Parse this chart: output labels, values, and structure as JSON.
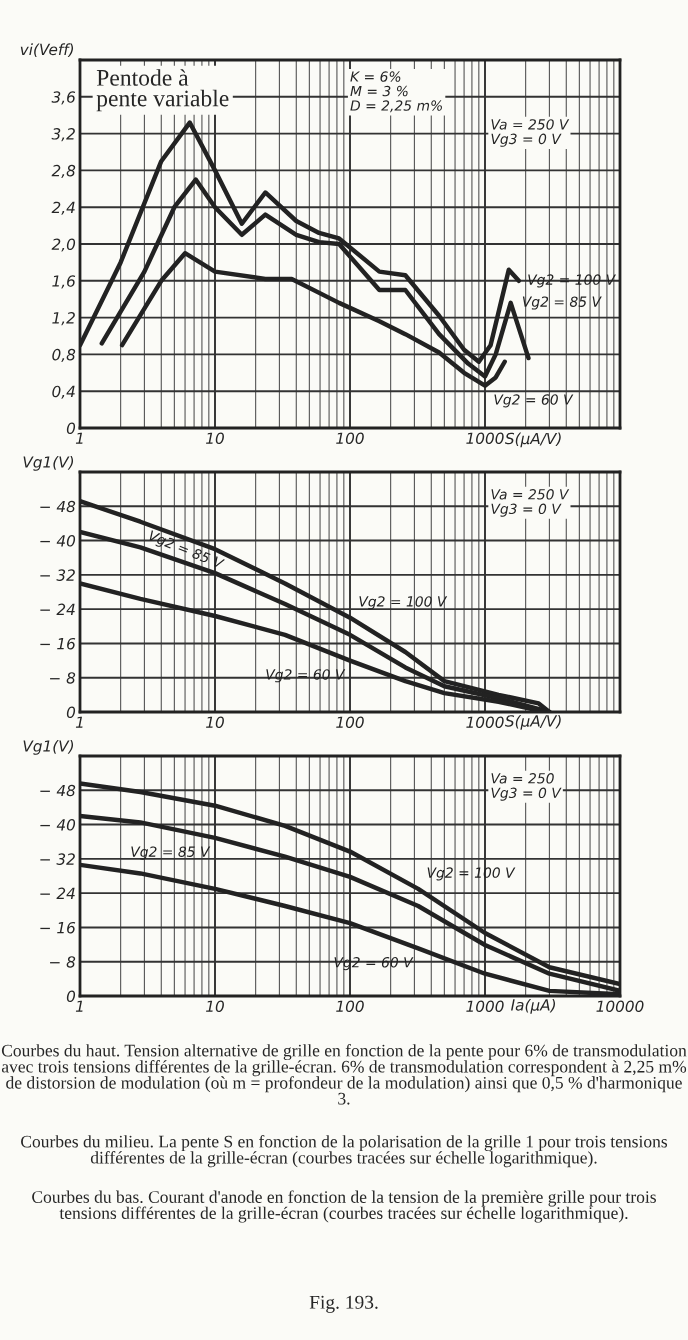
{
  "chart_data": [
    {
      "type": "line",
      "ylabel": "vi(Veff)",
      "xlabel": "S(µA/V)",
      "log": "x",
      "grid": true,
      "xlim": [
        1,
        10000
      ],
      "ylim": [
        0,
        4.0
      ],
      "xticks": [
        1,
        10,
        100,
        1000,
        {
          "value": 10000,
          "label": null
        }
      ],
      "yticks": [
        0,
        {
          "value": 0.4,
          "label": "0,4"
        },
        {
          "value": 0.8,
          "label": "0,8"
        },
        {
          "value": 1.2,
          "label": "1,2"
        },
        {
          "value": 1.6,
          "label": "1,6"
        },
        {
          "value": 2.0,
          "label": "2,0"
        },
        {
          "value": 2.4,
          "label": "2,4"
        },
        {
          "value": 2.8,
          "label": "2,8"
        },
        {
          "value": 3.2,
          "label": "3,2"
        },
        {
          "value": 3.6,
          "label": "3,6"
        }
      ],
      "annotations": [
        "Pentode à\npente variable",
        "K = 6%\nM = 3 %\nD = 2,25 m%",
        "Va = 250 V\nVg3 = 0 V"
      ],
      "series": [
        {
          "name": "Vg2 = 100 V",
          "color": "#222222",
          "x": [
            1,
            2,
            4,
            6.5,
            10,
            15.8,
            23.6,
            40,
            59,
            83,
            165,
            257,
            457,
            700,
            900,
            1100,
            1500,
            1780
          ],
          "values": [
            0.9,
            1.8,
            2.9,
            3.32,
            2.8,
            2.22,
            2.56,
            2.25,
            2.12,
            2.06,
            1.7,
            1.66,
            1.22,
            0.85,
            0.72,
            0.9,
            1.72,
            1.6
          ]
        },
        {
          "name": "Vg2 = 85 V",
          "color": "#222222",
          "x": [
            1.45,
            3,
            5,
            7.2,
            10,
            15.8,
            23.6,
            40,
            59,
            83,
            165,
            257,
            457,
            750,
            1000,
            1200,
            1550,
            2100
          ],
          "values": [
            0.92,
            1.7,
            2.4,
            2.7,
            2.4,
            2.1,
            2.32,
            2.1,
            2.02,
            2.0,
            1.5,
            1.5,
            1.02,
            0.7,
            0.56,
            0.8,
            1.36,
            0.76
          ]
        },
        {
          "name": "Vg2 = 60 V",
          "color": "#222222",
          "x": [
            2.05,
            4,
            6,
            10,
            23.6,
            37,
            83,
            165,
            257,
            457,
            700,
            1000,
            1200,
            1400
          ],
          "values": [
            0.9,
            1.6,
            1.9,
            1.7,
            1.62,
            1.62,
            1.36,
            1.16,
            1.02,
            0.82,
            0.6,
            0.46,
            0.55,
            0.72
          ]
        }
      ]
    },
    {
      "type": "line",
      "ylabel": "Vg1(V)",
      "xlabel": "S(µA/V)",
      "log": "x",
      "grid": true,
      "xlim": [
        1,
        10000
      ],
      "ylim": [
        0,
        -56
      ],
      "xticks": [
        1,
        10,
        100,
        1000,
        {
          "value": 10000,
          "label": null
        }
      ],
      "yticks": [
        0,
        {
          "value": -8,
          "label": "− 8"
        },
        {
          "value": -16,
          "label": "− 16"
        },
        {
          "value": -24,
          "label": "− 24"
        },
        {
          "value": -32,
          "label": "− 32"
        },
        {
          "value": -40,
          "label": "− 40"
        },
        {
          "value": -48,
          "label": "− 48"
        }
      ],
      "annotations": [
        "Va = 250 V\nVg3 = 0 V"
      ],
      "series": [
        {
          "name": "Vg2 = 100 V",
          "color": "#222222",
          "x": [
            1,
            2.8,
            10,
            33,
            100,
            257,
            500,
            1260,
            2500,
            3000
          ],
          "values": [
            -49.2,
            -44.4,
            -38,
            -30,
            -22,
            -14,
            -7.2,
            -4,
            -2,
            0
          ]
        },
        {
          "name": "Vg2 = 85 V",
          "color": "#222222",
          "x": [
            1,
            2.8,
            10,
            33,
            100,
            257,
            500,
            1260,
            3000
          ],
          "values": [
            -42,
            -38.4,
            -32.4,
            -25.2,
            -18,
            -10.4,
            -6,
            -3.2,
            0
          ]
        },
        {
          "name": "Vg2 = 60 V",
          "color": "#222222",
          "x": [
            1,
            2.8,
            10,
            33,
            100,
            257,
            500,
            1260,
            2800
          ],
          "values": [
            -30,
            -26.4,
            -22.4,
            -18,
            -12,
            -7.2,
            -4.4,
            -2.4,
            0
          ]
        }
      ]
    },
    {
      "type": "line",
      "ylabel": "Vg1(V)",
      "xlabel": "Ia(µA)",
      "log": "x",
      "grid": true,
      "xlim": [
        1,
        10000
      ],
      "ylim": [
        0,
        -56
      ],
      "xticks": [
        1,
        10,
        100,
        1000,
        10000
      ],
      "yticks": [
        0,
        {
          "value": -8,
          "label": "− 8"
        },
        {
          "value": -16,
          "label": "− 16"
        },
        {
          "value": -24,
          "label": "− 24"
        },
        {
          "value": -32,
          "label": "− 32"
        },
        {
          "value": -40,
          "label": "− 40"
        },
        {
          "value": -48,
          "label": "− 48"
        }
      ],
      "annotations": [
        "Va = 250\nVg3 = 0 V",
        "Courbes du haut. Tension alternative de grille en fonction de la pente pour 6% de transmodulation avec trois tensions différentes de la grille-écran. 6% de transmodulation correspondent à 2,25 m% de distorsion de modulation (où m = profondeur de la modulation) ainsi que 0,5 % d'harmonique 3.",
        "Courbes du milieu. La pente S en fonction de la polarisation de la grille 1 pour trois tensions différentes de la grille-écran (courbes tracées sur échelle logarithmique).",
        "Courbes du bas. Courant d'anode en fonction de la tension de la première grille pour trois tensions différentes de la grille-écran (courbes tracées sur échelle logarithmique).",
        "Fig. 193."
      ],
      "series": [
        {
          "name": "Vg2 = 100 V",
          "color": "#222222",
          "x": [
            1,
            2.8,
            10,
            33,
            100,
            320,
            1000,
            3000,
            10000
          ],
          "values": [
            -49.6,
            -47.6,
            -44.4,
            -39.7,
            -33.7,
            -25,
            -14.7,
            -6.7,
            -2.8
          ]
        },
        {
          "name": "Vg2 = 85 V",
          "color": "#222222",
          "x": [
            1,
            2.8,
            10,
            33,
            100,
            320,
            1000,
            3000,
            10000
          ],
          "values": [
            -42,
            -40.5,
            -36.9,
            -32.5,
            -27.8,
            -21,
            -11.9,
            -5.2,
            -1.2
          ]
        },
        {
          "name": "Vg2 = 60 V",
          "color": "#222222",
          "x": [
            1,
            2.8,
            10,
            33,
            100,
            320,
            1000,
            3000,
            10000
          ],
          "values": [
            -30.6,
            -28.6,
            -25,
            -21,
            -17,
            -11.1,
            -5.2,
            -1.2,
            -0.4
          ]
        }
      ]
    }
  ]
}
